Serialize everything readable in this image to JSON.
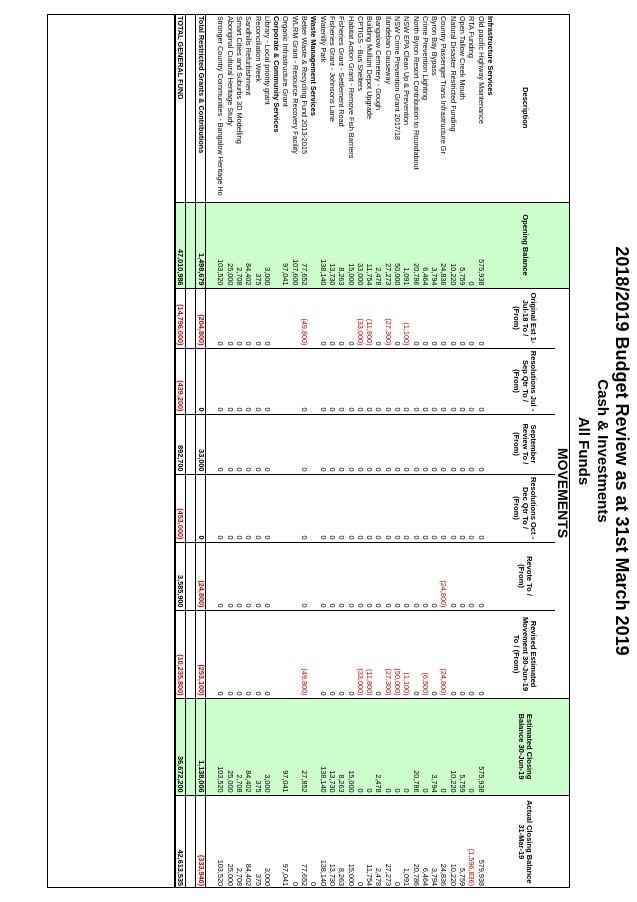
{
  "title": {
    "line1": "2018/2019 Budget Review as at 31st March 2019",
    "line2": "Cash & Investments",
    "line3": "All Funds"
  },
  "movements_heading": "MOVEMENTS",
  "columns": [
    "Description",
    "Opening Balance",
    "Original Est 1-Jul-18 To / (From)",
    "Resolutions Jul - Sep Qtr To / (From)",
    "September Review To / (From)",
    "Resolutions Oct - Dec Qtr To / (From)",
    "Revote To / (From)",
    "Revised Estimated Movement 30-Jun-19 To / (From)",
    "Estimated Closing Balance 30-Jun-19",
    "Actual Closing Balance 31-Mar-19"
  ],
  "rows": [
    {
      "type": "section",
      "desc": "Infrastructure Services"
    },
    {
      "desc": "Old pacific Highway Maintenance",
      "v": [
        "575,938",
        "0",
        "0",
        "0",
        "0",
        "0",
        "0",
        "575,938",
        "579,938"
      ]
    },
    {
      "desc": "RTA Funding",
      "v": [
        "0",
        "0",
        "0",
        "0",
        "0",
        "0",
        "0",
        "0",
        "(1,596,836)"
      ]
    },
    {
      "desc": "Open Tallow Creek Mouth",
      "v": [
        "5,759",
        "0",
        "0",
        "0",
        "0",
        "0",
        "0",
        "5,759",
        "5,759"
      ]
    },
    {
      "desc": "Natural Disaster Restricted Funding",
      "v": [
        "10,220",
        "0",
        "0",
        "0",
        "0",
        "0",
        "0",
        "10,220",
        "10,220"
      ]
    },
    {
      "desc": "Country Passenger Trans Infrastructure Gr",
      "v": [
        "24,836",
        "0",
        "0",
        "0",
        "0",
        "(24,800)",
        "(24,800)",
        "0",
        "24,836"
      ]
    },
    {
      "desc": "Byron Bay Bypass",
      "v": [
        "3,794",
        "0",
        "0",
        "0",
        "0",
        "0",
        "0",
        "3,794",
        "3,794"
      ]
    },
    {
      "desc": "Crime Prevention Lighting",
      "v": [
        "6,464",
        "0",
        "0",
        "0",
        "0",
        "0",
        "(6,500)",
        "0",
        "6,464"
      ]
    },
    {
      "desc": "North Byron Resort Contribution to Roundabout",
      "v": [
        "20,786",
        "0",
        "0",
        "0",
        "0",
        "0",
        "0",
        "20,786",
        "20,786"
      ]
    },
    {
      "desc": "NSW EPA Clean Up & Prevention",
      "v": [
        "1,091",
        "(1,100)",
        "0",
        "0",
        "0",
        "0",
        "(1,100)",
        "0",
        "1,091"
      ]
    },
    {
      "desc": "NSW Crime Prevention Grant 2017/18",
      "v": [
        "50,000",
        "0",
        "0",
        "0",
        "0",
        "0",
        "(50,000)",
        "0",
        "0"
      ]
    },
    {
      "desc": "Ilandeban Causeway",
      "v": [
        "27,273",
        "(27,300)",
        "0",
        "0",
        "0",
        "0",
        "(27,300)",
        "0",
        "27,273"
      ]
    },
    {
      "desc": "Bangalow Cemetery - Gough",
      "v": [
        "2,478",
        "0",
        "0",
        "0",
        "0",
        "0",
        "0",
        "2,478",
        "2,478"
      ]
    },
    {
      "desc": "Building Mullum Depot Upgrade",
      "v": [
        "11,754",
        "(11,800)",
        "0",
        "0",
        "0",
        "0",
        "(11,800)",
        "0",
        "11,754"
      ]
    },
    {
      "desc": "CPTIGS - Bus Shelters",
      "v": [
        "33,000",
        "(33,000)",
        "0",
        "0",
        "0",
        "0",
        "(33,000)",
        "0",
        "0"
      ]
    },
    {
      "desc": "Habitat Action Grant - Remove Fish Barriers",
      "v": [
        "15,000",
        "0",
        "0",
        "0",
        "0",
        "0",
        "0",
        "15,000",
        "15,000"
      ]
    },
    {
      "desc": "Fisheries Grant - Settlement Road",
      "v": [
        "8,263",
        "0",
        "0",
        "0",
        "0",
        "0",
        "0",
        "8,263",
        "8,263"
      ]
    },
    {
      "desc": "Fisheries Grant - Johnsons Lane",
      "v": [
        "13,730",
        "0",
        "0",
        "0",
        "0",
        "0",
        "0",
        "13,730",
        "13,730"
      ]
    },
    {
      "desc": "Waterlilly Park",
      "v": [
        "138,140",
        "0",
        "0",
        "0",
        "0",
        "0",
        "0",
        "138,140",
        "138,140"
      ]
    },
    {
      "type": "section",
      "desc": "Waste Management Services",
      "v": [
        "",
        "",
        "",
        "",
        "",
        "",
        "",
        "",
        "0"
      ]
    },
    {
      "desc": "Better Waste & Recycling Fund 2013-2015",
      "v": [
        "77,652",
        "(49,800)",
        "0",
        "0",
        "0",
        "0",
        "(49,800)",
        "27,852",
        "77,652"
      ]
    },
    {
      "desc": "WLRM Grant - Resource Recovery Facility",
      "v": [
        "107,600",
        "",
        "",
        "",
        "",
        "",
        "",
        "",
        "0"
      ]
    },
    {
      "desc": "Organic Infrastructure Grant",
      "v": [
        "97,041",
        "",
        "",
        "",
        "",
        "",
        "",
        "97,041",
        "97,041"
      ]
    },
    {
      "type": "section",
      "desc": "Corporate & Community Services"
    },
    {
      "desc": "Library - Local priority grant",
      "v": [
        "3,000",
        "0",
        "0",
        "0",
        "0",
        "0",
        "0",
        "3,000",
        "3,000"
      ]
    },
    {
      "desc": "Reconciliation Week",
      "v": [
        "375",
        "0",
        "0",
        "0",
        "0",
        "0",
        "0",
        "375",
        "375"
      ]
    },
    {
      "desc": "Sandhills Refurbishment",
      "v": [
        "84,402",
        "0",
        "0",
        "0",
        "0",
        "0",
        "0",
        "84,402",
        "84,402"
      ]
    },
    {
      "desc": "Smart Cities and Suburbs 3D Modelling",
      "v": [
        "2,708",
        "0",
        "0",
        "0",
        "0",
        "0",
        "0",
        "2,708",
        "2,708"
      ]
    },
    {
      "desc": "Aboriginal Cultural Heritage Study",
      "v": [
        "25,000",
        "0",
        "0",
        "0",
        "0",
        "0",
        "0",
        "25,000",
        "25,000"
      ]
    },
    {
      "desc": "Stronger Country Communities - Bangalow Heritage Ho",
      "v": [
        "103,520",
        "0",
        "0",
        "0",
        "0",
        "0",
        "0",
        "103,520",
        "103,520"
      ]
    },
    {
      "type": "blank"
    },
    {
      "type": "subtotal",
      "desc": "Total Restricted Grants & Contributions",
      "v": [
        "1,498,679",
        "(204,800)",
        "0",
        "33,000",
        "0",
        "(24,800)",
        "(253,100)",
        "1,138,006",
        "(333,940)"
      ]
    },
    {
      "type": "blank"
    },
    {
      "type": "grand",
      "desc": "TOTAL GENERAL FUND",
      "v": [
        "47,010,986",
        "(14,796,000)",
        "(439,200)",
        "892,700",
        "(453,000)",
        "3,585,900",
        "(10,235,800)",
        "36,672,200",
        "42,613,535"
      ]
    }
  ]
}
